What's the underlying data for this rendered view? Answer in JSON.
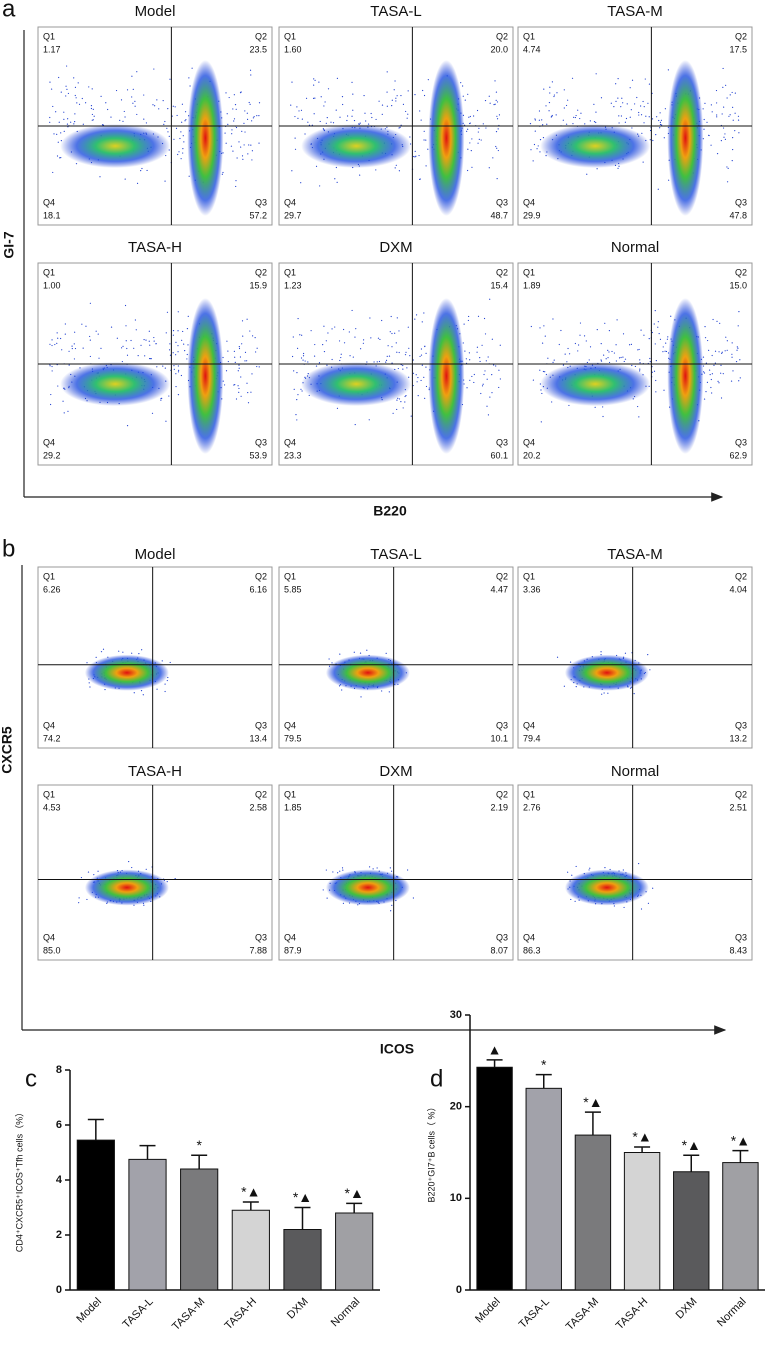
{
  "panels": [
    {
      "letter": "a",
      "x_label": "B220",
      "y_label": "GI-7",
      "plots": [
        {
          "title": "Model",
          "quadrants": [
            {
              "name": "Q1",
              "value": "1.17"
            },
            {
              "name": "Q2",
              "value": "23.5"
            },
            {
              "name": "Q3",
              "value": "57.2"
            },
            {
              "name": "Q4",
              "value": "18.1"
            }
          ]
        },
        {
          "title": "TASA-L",
          "quadrants": [
            {
              "name": "Q1",
              "value": "1.60"
            },
            {
              "name": "Q2",
              "value": "20.0"
            },
            {
              "name": "Q3",
              "value": "48.7"
            },
            {
              "name": "Q4",
              "value": "29.7"
            }
          ]
        },
        {
          "title": "TASA-M",
          "quadrants": [
            {
              "name": "Q1",
              "value": "4.74"
            },
            {
              "name": "Q2",
              "value": "17.5"
            },
            {
              "name": "Q3",
              "value": "47.8"
            },
            {
              "name": "Q4",
              "value": "29.9"
            }
          ]
        },
        {
          "title": "TASA-H",
          "quadrants": [
            {
              "name": "Q1",
              "value": "1.00"
            },
            {
              "name": "Q2",
              "value": "15.9"
            },
            {
              "name": "Q3",
              "value": "53.9"
            },
            {
              "name": "Q4",
              "value": "29.2"
            }
          ]
        },
        {
          "title": "DXM",
          "quadrants": [
            {
              "name": "Q1",
              "value": "1.23"
            },
            {
              "name": "Q2",
              "value": "15.4"
            },
            {
              "name": "Q3",
              "value": "60.1"
            },
            {
              "name": "Q4",
              "value": "23.3"
            }
          ]
        },
        {
          "title": "Normal",
          "quadrants": [
            {
              "name": "Q1",
              "value": "1.89"
            },
            {
              "name": "Q2",
              "value": "15.0"
            },
            {
              "name": "Q3",
              "value": "62.9"
            },
            {
              "name": "Q4",
              "value": "20.2"
            }
          ]
        }
      ]
    },
    {
      "letter": "b",
      "x_label": "ICOS",
      "y_label": "CXCR5",
      "plots": [
        {
          "title": "Model",
          "quadrants": [
            {
              "name": "Q1",
              "value": "6.26"
            },
            {
              "name": "Q2",
              "value": "6.16"
            },
            {
              "name": "Q3",
              "value": "13.4"
            },
            {
              "name": "Q4",
              "value": "74.2"
            }
          ]
        },
        {
          "title": "TASA-L",
          "quadrants": [
            {
              "name": "Q1",
              "value": "5.85"
            },
            {
              "name": "Q2",
              "value": "4.47"
            },
            {
              "name": "Q3",
              "value": "10.1"
            },
            {
              "name": "Q4",
              "value": "79.5"
            }
          ]
        },
        {
          "title": "TASA-M",
          "quadrants": [
            {
              "name": "Q1",
              "value": "3.36"
            },
            {
              "name": "Q2",
              "value": "4.04"
            },
            {
              "name": "Q3",
              "value": "13.2"
            },
            {
              "name": "Q4",
              "value": "79.4"
            }
          ]
        },
        {
          "title": "TASA-H",
          "quadrants": [
            {
              "name": "Q1",
              "value": "4.53"
            },
            {
              "name": "Q2",
              "value": "2.58"
            },
            {
              "name": "Q3",
              "value": "7.88"
            },
            {
              "name": "Q4",
              "value": "85.0"
            }
          ]
        },
        {
          "title": "DXM",
          "quadrants": [
            {
              "name": "Q1",
              "value": "1.85"
            },
            {
              "name": "Q2",
              "value": "2.19"
            },
            {
              "name": "Q3",
              "value": "8.07"
            },
            {
              "name": "Q4",
              "value": "87.9"
            }
          ]
        },
        {
          "title": "Normal",
          "quadrants": [
            {
              "name": "Q1",
              "value": "2.76"
            },
            {
              "name": "Q2",
              "value": "2.51"
            },
            {
              "name": "Q3",
              "value": "8.43"
            },
            {
              "name": "Q4",
              "value": "86.3"
            }
          ]
        }
      ]
    }
  ],
  "chart_data": [
    {
      "type": "bar",
      "letter": "c",
      "y_label": "CD4⁺CXCR5⁺ICOS⁺Tfh cells（%）",
      "categories": [
        "Model",
        "TASA-L",
        "TASA-M",
        "TASA-H",
        "DXM",
        "Normal"
      ],
      "values": [
        5.45,
        4.75,
        4.4,
        2.9,
        2.2,
        2.8
      ],
      "errors": [
        0.75,
        0.5,
        0.5,
        0.3,
        0.8,
        0.35
      ],
      "markers": [
        null,
        null,
        "*",
        "*▲",
        "*▲",
        "*▲"
      ],
      "colors": [
        "#000000",
        "#a2a2aa",
        "#7a7a7c",
        "#d4d4d4",
        "#5a5a5c",
        "#a0a0a4"
      ],
      "ylim": [
        0,
        8
      ],
      "yticks": [
        0,
        2,
        4,
        6,
        8
      ]
    },
    {
      "type": "bar",
      "letter": "d",
      "y_label": "B220⁺GI7⁺B cells（ %）",
      "categories": [
        "Model",
        "TASA-L",
        "TASA-M",
        "TASA-H",
        "DXM",
        "Normal"
      ],
      "values": [
        24.3,
        22,
        16.9,
        15,
        12.9,
        13.9
      ],
      "errors": [
        0.8,
        1.5,
        2.5,
        0.6,
        1.8,
        1.3
      ],
      "markers": [
        "▲",
        "*",
        "*▲",
        "*▲",
        "*▲",
        "*▲"
      ],
      "colors": [
        "#000000",
        "#a2a2aa",
        "#7a7a7c",
        "#d4d4d4",
        "#5a5a5c",
        "#a0a0a4"
      ],
      "ylim": [
        0,
        30
      ],
      "yticks": [
        0,
        10,
        20,
        30
      ]
    }
  ]
}
